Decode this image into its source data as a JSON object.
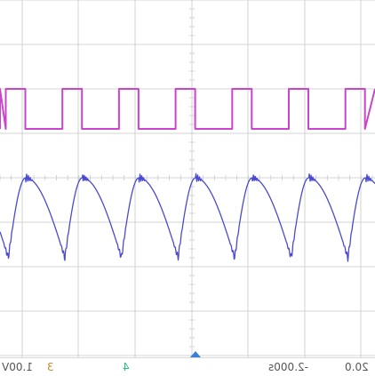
{
  "status_bar": {
    "ch1_scale": "1.00V",
    "ch3_marker": "3",
    "ch4_marker": "4",
    "timebase_offset": "-2.000s",
    "time_div": "20.0"
  },
  "colors": {
    "background": "#ffffff",
    "grid": "#c8c8c8",
    "trace_square": "#cc44cc",
    "trace_ramp": "#4a4ad0",
    "marker_ch3": "#c08a2a",
    "marker_ch4": "#2bbd80",
    "trigger_marker": "#3a7fd6",
    "label_text": "#555555"
  },
  "icons": {
    "trigger_marker": "triangle-up-icon"
  }
}
